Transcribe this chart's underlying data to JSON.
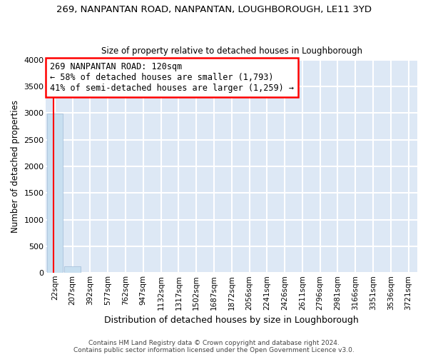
{
  "title": "269, NANPANTAN ROAD, NANPANTAN, LOUGHBOROUGH, LE11 3YD",
  "subtitle": "Size of property relative to detached houses in Loughborough",
  "xlabel": "Distribution of detached houses by size in Loughborough",
  "ylabel": "Number of detached properties",
  "bar_labels": [
    "22sqm",
    "207sqm",
    "392sqm",
    "577sqm",
    "762sqm",
    "947sqm",
    "1132sqm",
    "1317sqm",
    "1502sqm",
    "1687sqm",
    "1872sqm",
    "2056sqm",
    "2241sqm",
    "2426sqm",
    "2611sqm",
    "2796sqm",
    "2981sqm",
    "3166sqm",
    "3351sqm",
    "3536sqm",
    "3721sqm"
  ],
  "bar_heights": [
    2990,
    120,
    0,
    0,
    0,
    0,
    0,
    0,
    0,
    0,
    0,
    0,
    0,
    0,
    0,
    0,
    0,
    0,
    0,
    0,
    0
  ],
  "bar_color": "#c8dff0",
  "bar_edge_color": "#a0bcd8",
  "vline_x": -0.08,
  "vline_color": "red",
  "annotation_text": "269 NANPANTAN ROAD: 120sqm\n← 58% of detached houses are smaller (1,793)\n41% of semi-detached houses are larger (1,259) →",
  "annotation_box_color": "white",
  "annotation_box_edge": "red",
  "ylim": [
    0,
    4000
  ],
  "yticks": [
    0,
    500,
    1000,
    1500,
    2000,
    2500,
    3000,
    3500,
    4000
  ],
  "bg_color": "#dde8f5",
  "grid_color": "white",
  "footer_line1": "Contains HM Land Registry data © Crown copyright and database right 2024.",
  "footer_line2": "Contains public sector information licensed under the Open Government Licence v3.0."
}
